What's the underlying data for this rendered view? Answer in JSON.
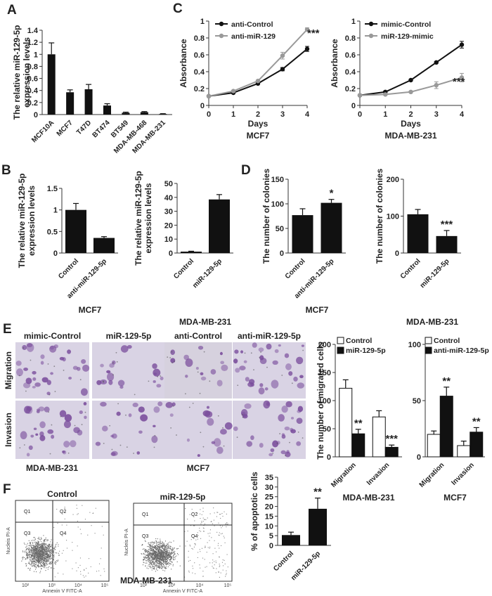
{
  "panel_letters": [
    "A",
    "B",
    "C",
    "D",
    "E",
    "F"
  ],
  "chart_data": [
    {
      "id": "A",
      "type": "bar",
      "ylabel": "The relative miR-129-5p expression levels",
      "categories": [
        "MCF10A",
        "MCF7",
        "T47D",
        "BT474",
        "BT549",
        "MDA-MB-468",
        "MDA-MB-231"
      ],
      "values": [
        1.0,
        0.37,
        0.42,
        0.15,
        0.03,
        0.04,
        0.01
      ],
      "errors": [
        0.19,
        0.04,
        0.08,
        0.03,
        0.01,
        0.01,
        0.005
      ],
      "ylim": [
        0,
        1.4
      ],
      "ticks": [
        0,
        0.2,
        0.4,
        0.6,
        0.8,
        1,
        1.2,
        1.4
      ],
      "xlabel": "",
      "title": ""
    },
    {
      "id": "C1",
      "type": "line",
      "ylabel": "Absorbance",
      "xlabel": "Days",
      "title": "MCF7",
      "x": [
        0,
        1,
        2,
        3,
        4
      ],
      "series": [
        {
          "name": "anti-Control",
          "color": "#111111",
          "values": [
            0.11,
            0.15,
            0.26,
            0.43,
            0.67
          ],
          "errors": [
            0.01,
            0.01,
            0.01,
            0.02,
            0.03
          ]
        },
        {
          "name": "anti-miR-129",
          "color": "#999999",
          "values": [
            0.11,
            0.17,
            0.29,
            0.59,
            0.9
          ],
          "errors": [
            0.01,
            0.01,
            0.01,
            0.04,
            0.02
          ]
        }
      ],
      "annotations": [
        "***"
      ],
      "ylim": [
        0,
        1
      ],
      "ticks": [
        0,
        0.2,
        0.4,
        0.6,
        0.8,
        1
      ],
      "xticks": [
        0,
        1,
        2,
        3,
        4
      ]
    },
    {
      "id": "C2",
      "type": "line",
      "ylabel": "Absorbance",
      "xlabel": "Days",
      "title": "MDA-MB-231",
      "x": [
        0,
        1,
        2,
        3,
        4
      ],
      "series": [
        {
          "name": "mimic-Control",
          "color": "#111111",
          "values": [
            0.12,
            0.16,
            0.3,
            0.51,
            0.72
          ],
          "errors": [
            0.01,
            0.01,
            0.01,
            0.01,
            0.04
          ]
        },
        {
          "name": "miR-129-mimic",
          "color": "#999999",
          "values": [
            0.12,
            0.13,
            0.16,
            0.24,
            0.33
          ],
          "errors": [
            0.01,
            0.01,
            0.01,
            0.04,
            0.05
          ]
        }
      ],
      "annotations": [
        "***"
      ],
      "ylim": [
        0,
        1
      ],
      "ticks": [
        0,
        0.2,
        0.4,
        0.6,
        0.8,
        1
      ],
      "xticks": [
        0,
        1,
        2,
        3,
        4
      ]
    },
    {
      "id": "B1",
      "type": "bar",
      "ylabel": "The relative miR-129-5p expression levels",
      "title": "MCF7",
      "categories": [
        "Control",
        "anti-miR-129-5p"
      ],
      "values": [
        1.0,
        0.35
      ],
      "errors": [
        0.15,
        0.03
      ],
      "annotations": [
        "",
        ""
      ],
      "ylim": [
        0,
        1.5
      ],
      "ticks": [
        0,
        0.5,
        1,
        1.5
      ],
      "ticklabels": [
        "0",
        "0.5",
        "1",
        "1.5"
      ]
    },
    {
      "id": "B2",
      "type": "bar",
      "ylabel": "The relative miR-129-5p expression levels",
      "title": "MDA-MB-231",
      "categories": [
        "Control",
        "miR-129-5p"
      ],
      "values": [
        1.0,
        38.5
      ],
      "errors": [
        0.3,
        3.5
      ],
      "annotations": [
        "",
        ""
      ],
      "ylim": [
        0,
        50
      ],
      "ticks": [
        0,
        10,
        20,
        30,
        40,
        50
      ]
    },
    {
      "id": "D1",
      "type": "bar",
      "ylabel": "The number of colonies",
      "title": "MCF7",
      "categories": [
        "Control",
        "anti-miR-129-5p"
      ],
      "values": [
        77,
        102
      ],
      "errors": [
        13,
        7
      ],
      "annotations": [
        "",
        "*"
      ],
      "ylim": [
        0,
        150
      ],
      "ticks": [
        0,
        50,
        100,
        150
      ]
    },
    {
      "id": "D2",
      "type": "bar",
      "ylabel": "The number of colonies",
      "title": "MDA-MB-231",
      "categories": [
        "Control",
        "miR-129-5p"
      ],
      "values": [
        105,
        46
      ],
      "errors": [
        13,
        15
      ],
      "annotations": [
        "",
        "***"
      ],
      "ylim": [
        0,
        200
      ],
      "ticks": [
        0,
        100,
        200
      ]
    },
    {
      "id": "E1",
      "type": "bar",
      "ylabel": "The number of migrated cells",
      "title": "MDA-MB-231",
      "categories": [
        "Migration",
        "Invasion"
      ],
      "series": [
        {
          "name": "Control",
          "fill": "#ffffff",
          "values": [
            122,
            71
          ],
          "errors": [
            15,
            11
          ]
        },
        {
          "name": "miR-129-5p",
          "fill": "#111111",
          "values": [
            41,
            17
          ],
          "errors": [
            8,
            4
          ]
        }
      ],
      "annotations": [
        "**",
        "***"
      ],
      "ylim": [
        0,
        200
      ],
      "ticks": [
        0,
        50,
        100,
        150,
        200
      ]
    },
    {
      "id": "E2",
      "type": "bar",
      "title": "MCF7",
      "categories": [
        "Migration",
        "Invasion"
      ],
      "series": [
        {
          "name": "Control",
          "fill": "#ffffff",
          "values": [
            20,
            10
          ],
          "errors": [
            3,
            4
          ]
        },
        {
          "name": "anti-miR-129-5p",
          "fill": "#111111",
          "values": [
            54,
            22
          ],
          "errors": [
            8,
            4
          ]
        }
      ],
      "annotations": [
        "**",
        "**"
      ],
      "ylim": [
        0,
        100
      ],
      "ticks": [
        0,
        50,
        100
      ]
    },
    {
      "id": "F",
      "type": "bar",
      "ylabel": "% of apoptotic cells",
      "categories": [
        "Control",
        "miR-129-5p"
      ],
      "values": [
        5.3,
        18.8
      ],
      "errors": [
        1.5,
        5.5
      ],
      "annotations": [
        "",
        "**"
      ],
      "ylim": [
        0,
        35
      ],
      "ticks": [
        0,
        5,
        10,
        15,
        20,
        25,
        30,
        35
      ]
    }
  ],
  "micrographs": {
    "column_headers": [
      "mimic-Control",
      "miR-129-5p",
      "anti-Control",
      "anti-miR-129-5p"
    ],
    "row_headers": [
      "Migration",
      "Invasion"
    ],
    "group_labels": [
      "MDA-MB-231",
      "MCF7"
    ],
    "background": "#d9d3e4",
    "stain": "#7a4d9c"
  },
  "flow": {
    "panels": [
      {
        "title": "Control",
        "ylabel": "Nucleis PI-A",
        "xlabel": "Annexin V FITC-A"
      },
      {
        "title": "miR-129-5p",
        "ylabel": "Nucleis PI-A",
        "xlabel": "Annexin V FITC-A"
      }
    ],
    "quadrants": [
      "Q1",
      "Q2",
      "Q3",
      "Q4"
    ],
    "decade_labels": [
      "10²",
      "10³",
      "10⁴",
      "10⁵"
    ],
    "group_label": "MDA-MB-231"
  },
  "colors": {
    "black_bar": "#111111",
    "grey_line": "#999999",
    "dots": "#666666"
  }
}
